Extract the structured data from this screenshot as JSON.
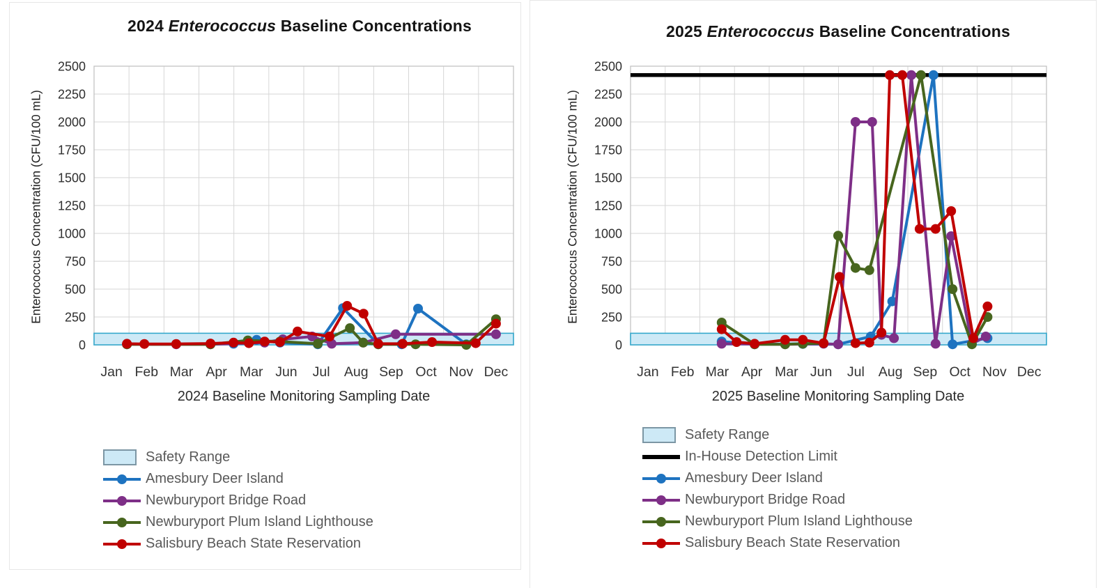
{
  "page": {
    "background": "#ffffff"
  },
  "chart_data": [
    {
      "type": "line",
      "title": {
        "prefix": "2024 ",
        "italic": "Enterococcus",
        "suffix": " Baseline Concentrations"
      },
      "y_axis_title": "Enterococcus  Concentration (CFU/100 mL)",
      "x_axis_title": "2024 Baseline Monitoring Sampling Date",
      "ylim": [
        0,
        2500
      ],
      "y_ticks": [
        0,
        250,
        500,
        750,
        1000,
        1250,
        1500,
        1750,
        2000,
        2250,
        2500
      ],
      "x_labels": [
        "Jan",
        "Feb",
        "Mar",
        "Apr",
        "Mar",
        "Jun",
        "Jul",
        "Aug",
        "Sep",
        "Oct",
        "Nov",
        "Dec"
      ],
      "grid": true,
      "legend_position": "bottom-left",
      "safety_range": {
        "label": "Safety Range",
        "min": 0,
        "max": 104,
        "fill": "#cde9f6",
        "stroke": "#35a8cc"
      },
      "detection_limit": null,
      "series": [
        {
          "name": "Amesbury Deer Island",
          "color": "#1e73c0",
          "points": [
            [
              3.49,
              10
            ],
            [
              4.15,
              45
            ],
            [
              4.82,
              20
            ],
            [
              5.9,
              5
            ],
            [
              6.62,
              330
            ],
            [
              7.63,
              5
            ],
            [
              8.3,
              5
            ],
            [
              8.77,
              325
            ],
            [
              10.15,
              5
            ]
          ]
        },
        {
          "name": "Newburyport Bridge Road",
          "color": "#7e2f87",
          "points": [
            [
              0.44,
              5
            ],
            [
              1.85,
              5
            ],
            [
              2.83,
              5
            ],
            [
              4.38,
              20
            ],
            [
              4.9,
              50
            ],
            [
              5.74,
              75
            ],
            [
              6.3,
              10
            ],
            [
              7.2,
              20
            ],
            [
              8.13,
              95
            ],
            [
              11,
              95
            ]
          ]
        },
        {
          "name": "Newburyport Plum Island Lighthouse",
          "color": "#47651e",
          "points": [
            [
              0.44,
              5
            ],
            [
              2.83,
              5
            ],
            [
              3.9,
              40
            ],
            [
              4.82,
              30
            ],
            [
              5.9,
              10
            ],
            [
              6.82,
              150
            ],
            [
              7.2,
              20
            ],
            [
              7.63,
              5
            ],
            [
              8.7,
              5
            ],
            [
              10.15,
              0
            ],
            [
              11,
              230
            ]
          ]
        },
        {
          "name": "Salisbury Beach State Reservation",
          "color": "#c00000",
          "points": [
            [
              0.44,
              10
            ],
            [
              0.94,
              8
            ],
            [
              1.85,
              8
            ],
            [
              2.83,
              12
            ],
            [
              3.49,
              20
            ],
            [
              3.93,
              15
            ],
            [
              4.38,
              30
            ],
            [
              4.82,
              25
            ],
            [
              5.32,
              120
            ],
            [
              6.24,
              75
            ],
            [
              6.74,
              350
            ],
            [
              7.21,
              280
            ],
            [
              7.63,
              10
            ],
            [
              8.33,
              10
            ],
            [
              9.17,
              25
            ],
            [
              10.42,
              15
            ],
            [
              11,
              190
            ]
          ]
        }
      ]
    },
    {
      "type": "line",
      "title": {
        "prefix": "2025 ",
        "italic": "Enterococcus",
        "suffix": " Baseline Concentrations"
      },
      "y_axis_title": "Enterococcus  Concentration (CFU/100 mL)",
      "x_axis_title": "2025 Baseline Monitoring Sampling Date",
      "ylim": [
        0,
        2500
      ],
      "y_ticks": [
        0,
        250,
        500,
        750,
        1000,
        1250,
        1500,
        1750,
        2000,
        2250,
        2500
      ],
      "x_labels": [
        "Jan",
        "Feb",
        "Mar",
        "Apr",
        "Mar",
        "Jun",
        "Jul",
        "Aug",
        "Sep",
        "Oct",
        "Nov",
        "Dec"
      ],
      "grid": true,
      "legend_position": "bottom-left",
      "safety_range": {
        "label": "Safety Range",
        "min": 0,
        "max": 104,
        "fill": "#cde9f6",
        "stroke": "#35a8cc"
      },
      "detection_limit": {
        "label": "In-House Detection Limit",
        "value": 2420,
        "color": "#000000"
      },
      "series": [
        {
          "name": "Amesbury Deer Island",
          "color": "#1e73c0",
          "points": [
            [
              2.13,
              30
            ],
            [
              3.08,
              5
            ],
            [
              4.47,
              8
            ],
            [
              5.49,
              5
            ],
            [
              6.43,
              75
            ],
            [
              7.05,
              390
            ],
            [
              8.24,
              2420
            ],
            [
              8.79,
              5
            ],
            [
              9.8,
              60
            ]
          ]
        },
        {
          "name": "Newburyport Bridge Road",
          "color": "#7e2f87",
          "points": [
            [
              2.13,
              10
            ],
            [
              3.96,
              5
            ],
            [
              5.07,
              10
            ],
            [
              5.49,
              5
            ],
            [
              5.99,
              2000
            ],
            [
              6.47,
              2000
            ],
            [
              6.74,
              90
            ],
            [
              7.1,
              60
            ],
            [
              7.6,
              2420
            ],
            [
              8.3,
              10
            ],
            [
              8.75,
              975
            ],
            [
              9.35,
              10
            ],
            [
              9.75,
              75
            ]
          ]
        },
        {
          "name": "Newburyport Plum Island Lighthouse",
          "color": "#47651e",
          "points": [
            [
              2.13,
              200
            ],
            [
              3.08,
              5
            ],
            [
              3.96,
              5
            ],
            [
              4.47,
              10
            ],
            [
              5.07,
              15
            ],
            [
              5.49,
              980
            ],
            [
              5.99,
              690
            ],
            [
              6.39,
              670
            ],
            [
              7.88,
              2420
            ],
            [
              8.79,
              500
            ],
            [
              9.35,
              5
            ],
            [
              9.8,
              250
            ]
          ]
        },
        {
          "name": "Salisbury Beach State Reservation",
          "color": "#c00000",
          "points": [
            [
              2.13,
              140
            ],
            [
              2.56,
              25
            ],
            [
              3.08,
              10
            ],
            [
              3.96,
              45
            ],
            [
              4.47,
              45
            ],
            [
              5.07,
              15
            ],
            [
              5.53,
              610
            ],
            [
              5.99,
              15
            ],
            [
              6.39,
              20
            ],
            [
              6.74,
              110
            ],
            [
              6.98,
              2420
            ],
            [
              7.34,
              2420
            ],
            [
              7.84,
              1040
            ],
            [
              8.3,
              1040
            ],
            [
              8.75,
              1200
            ],
            [
              9.39,
              60
            ],
            [
              9.8,
              345
            ]
          ]
        }
      ]
    }
  ]
}
